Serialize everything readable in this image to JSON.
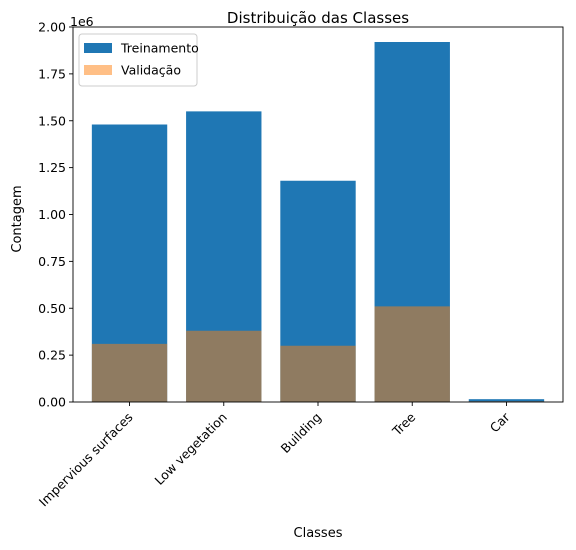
{
  "chart_data": {
    "type": "bar",
    "title": "Distribuição das Classes",
    "xlabel": "Classes",
    "ylabel": "Contagem",
    "y_scale_label": "1e6",
    "categories": [
      "Impervious surfaces",
      "Low vegetation",
      "Building",
      "Tree",
      "Car"
    ],
    "series": [
      {
        "name": "Treinamento",
        "values": [
          1.48,
          1.55,
          1.18,
          1.92,
          0.015
        ],
        "color": "#1f77b4",
        "opacity": 1
      },
      {
        "name": "Validação",
        "values": [
          0.31,
          0.38,
          0.3,
          0.51,
          0.004
        ],
        "color": "#ff7f0e",
        "opacity": 0.5
      }
    ],
    "ylim": [
      0,
      2.0
    ],
    "yticks": [
      "0.00",
      "0.25",
      "0.50",
      "0.75",
      "1.00",
      "1.25",
      "1.50",
      "1.75",
      "2.00"
    ],
    "ytick_values": [
      0,
      0.25,
      0.5,
      0.75,
      1.0,
      1.25,
      1.5,
      1.75,
      2.0
    ],
    "legend_position": "upper-left",
    "grid": false
  }
}
